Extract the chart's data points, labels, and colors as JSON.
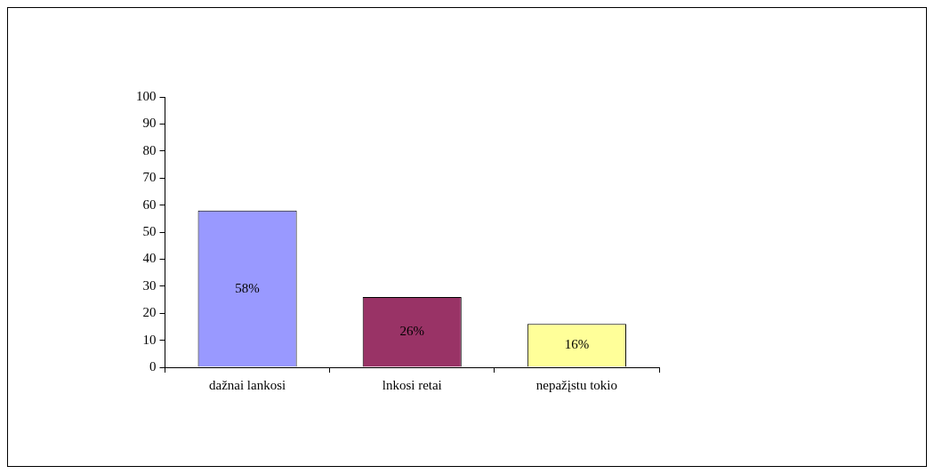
{
  "chart_data": {
    "type": "bar",
    "categories": [
      "dažnai lankosi",
      "lnkosi retai",
      "nepažįstu tokio"
    ],
    "values": [
      58,
      26,
      16
    ],
    "colors": [
      "#9999ff",
      "#993366",
      "#ffff99"
    ],
    "value_labels": [
      "58%",
      "26%",
      "16%"
    ],
    "ylim": [
      0,
      100
    ],
    "yticks": [
      0,
      10,
      20,
      30,
      40,
      50,
      60,
      70,
      80,
      90,
      100
    ]
  }
}
